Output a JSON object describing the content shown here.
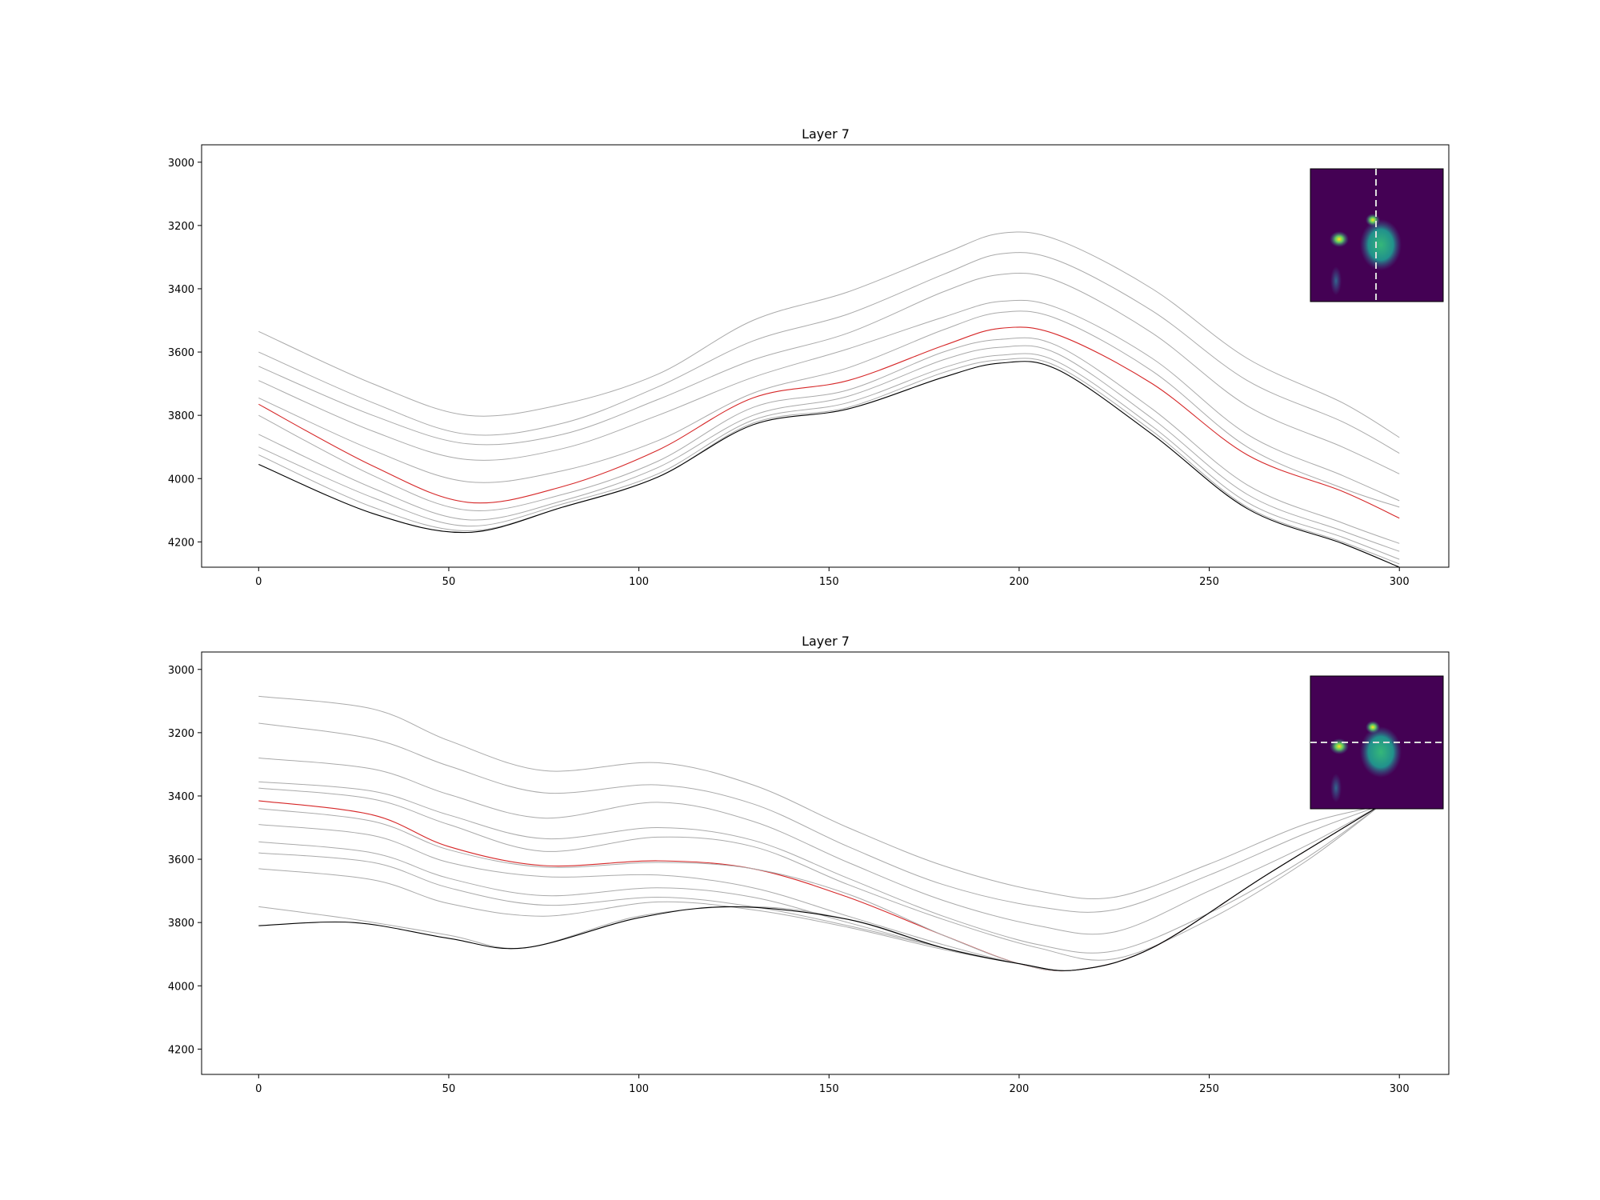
{
  "chart_data": [
    {
      "type": "line",
      "title": "Layer 7",
      "xlabel": "",
      "ylabel": "",
      "xlim": [
        -15,
        313
      ],
      "ylim": [
        4280,
        2945
      ],
      "y_inverted": true,
      "grid": false,
      "xticks": [
        "0",
        "50",
        "100",
        "150",
        "200",
        "250",
        "300"
      ],
      "yticks": [
        "3000",
        "3200",
        "3400",
        "3600",
        "3800",
        "4000",
        "4200"
      ],
      "series": [
        {
          "color": "#aaaaaa",
          "x": [
            0,
            30,
            55,
            80,
            105,
            130,
            155,
            180,
            195,
            210,
            235,
            260,
            285,
            300
          ],
          "y": [
            3535,
            3700,
            3800,
            3765,
            3670,
            3500,
            3410,
            3290,
            3225,
            3245,
            3400,
            3620,
            3760,
            3870
          ]
        },
        {
          "color": "#aaaaaa",
          "x": [
            0,
            30,
            55,
            80,
            105,
            130,
            155,
            180,
            195,
            210,
            235,
            260,
            285,
            300
          ],
          "y": [
            3600,
            3760,
            3860,
            3825,
            3710,
            3565,
            3480,
            3355,
            3290,
            3310,
            3470,
            3690,
            3820,
            3920
          ]
        },
        {
          "color": "#aaaaaa",
          "x": [
            0,
            30,
            55,
            80,
            105,
            130,
            155,
            180,
            195,
            210,
            235,
            260,
            285,
            300
          ],
          "y": [
            3645,
            3800,
            3890,
            3860,
            3750,
            3625,
            3540,
            3410,
            3355,
            3375,
            3540,
            3770,
            3900,
            3985
          ]
        },
        {
          "color": "#aaaaaa",
          "x": [
            0,
            30,
            55,
            80,
            105,
            130,
            155,
            180,
            195,
            210,
            235,
            260,
            285,
            300
          ],
          "y": [
            3690,
            3850,
            3940,
            3905,
            3800,
            3680,
            3590,
            3490,
            3440,
            3460,
            3620,
            3860,
            3990,
            4070
          ]
        },
        {
          "color": "#aaaaaa",
          "x": [
            0,
            30,
            55,
            80,
            105,
            130,
            155,
            180,
            195,
            210,
            235,
            260,
            285,
            300
          ],
          "y": [
            3745,
            3910,
            4010,
            3975,
            3880,
            3730,
            3650,
            3530,
            3475,
            3495,
            3660,
            3900,
            4030,
            4090
          ]
        },
        {
          "color": "#d62728",
          "x": [
            0,
            30,
            55,
            80,
            105,
            130,
            155,
            180,
            195,
            210,
            235,
            260,
            285,
            300
          ],
          "y": [
            3765,
            3960,
            4075,
            4025,
            3910,
            3745,
            3690,
            3580,
            3525,
            3545,
            3700,
            3925,
            4040,
            4125
          ]
        },
        {
          "color": "#aaaaaa",
          "x": [
            0,
            30,
            55,
            80,
            105,
            130,
            155,
            180,
            195,
            210,
            235,
            260,
            285,
            300
          ],
          "y": [
            3800,
            3990,
            4100,
            4050,
            3945,
            3775,
            3720,
            3600,
            3560,
            3580,
            3780,
            4020,
            4140,
            4205
          ]
        },
        {
          "color": "#aaaaaa",
          "x": [
            0,
            30,
            55,
            80,
            105,
            130,
            155,
            180,
            195,
            210,
            235,
            260,
            285,
            300
          ],
          "y": [
            3860,
            4030,
            4130,
            4070,
            3965,
            3800,
            3740,
            3625,
            3585,
            3605,
            3810,
            4050,
            4165,
            4230
          ]
        },
        {
          "color": "#aaaaaa",
          "x": [
            0,
            30,
            55,
            80,
            105,
            130,
            155,
            180,
            195,
            210,
            235,
            260,
            285,
            300
          ],
          "y": [
            3900,
            4060,
            4150,
            4080,
            3985,
            3815,
            3760,
            3650,
            3610,
            3630,
            3835,
            4075,
            4185,
            4255
          ]
        },
        {
          "color": "#aaaaaa",
          "x": [
            0,
            30,
            55,
            80,
            105,
            130,
            155,
            180,
            195,
            210,
            235,
            260,
            285,
            300
          ],
          "y": [
            3925,
            4090,
            4165,
            4090,
            3995,
            3825,
            3775,
            3665,
            3625,
            3645,
            3850,
            4090,
            4200,
            4270
          ]
        },
        {
          "color": "#000000",
          "x": [
            0,
            30,
            55,
            80,
            105,
            130,
            155,
            180,
            195,
            210,
            235,
            260,
            285,
            300
          ],
          "y": [
            3955,
            4110,
            4170,
            4090,
            3995,
            3830,
            3780,
            3680,
            3635,
            3655,
            3860,
            4095,
            4205,
            4280
          ]
        }
      ]
    },
    {
      "type": "line",
      "title": "Layer 7",
      "xlabel": "",
      "ylabel": "",
      "xlim": [
        -15,
        313
      ],
      "ylim": [
        4280,
        2945
      ],
      "y_inverted": true,
      "grid": false,
      "xticks": [
        "0",
        "50",
        "100",
        "150",
        "200",
        "250",
        "300"
      ],
      "yticks": [
        "3000",
        "3200",
        "3400",
        "3600",
        "3800",
        "4000",
        "4200"
      ],
      "series": [
        {
          "color": "#aaaaaa",
          "x": [
            0,
            30,
            50,
            75,
            105,
            130,
            155,
            180,
            205,
            225,
            250,
            275,
            295
          ],
          "y": [
            3085,
            3125,
            3225,
            3320,
            3295,
            3365,
            3500,
            3620,
            3700,
            3720,
            3615,
            3490,
            3430
          ]
        },
        {
          "color": "#aaaaaa",
          "x": [
            0,
            30,
            50,
            75,
            105,
            130,
            155,
            180,
            205,
            225,
            250,
            275,
            295
          ],
          "y": [
            3170,
            3220,
            3305,
            3390,
            3365,
            3425,
            3560,
            3680,
            3750,
            3760,
            3650,
            3520,
            3430
          ]
        },
        {
          "color": "#aaaaaa",
          "x": [
            0,
            30,
            50,
            75,
            105,
            130,
            155,
            180,
            205,
            225,
            250,
            275,
            295
          ],
          "y": [
            3280,
            3315,
            3395,
            3470,
            3420,
            3480,
            3610,
            3730,
            3810,
            3830,
            3700,
            3560,
            3430
          ]
        },
        {
          "color": "#aaaaaa",
          "x": [
            0,
            30,
            50,
            75,
            105,
            130,
            155,
            180,
            205,
            225,
            250,
            275,
            295
          ],
          "y": [
            3355,
            3385,
            3460,
            3535,
            3500,
            3540,
            3660,
            3780,
            3870,
            3890,
            3770,
            3600,
            3430
          ]
        },
        {
          "color": "#aaaaaa",
          "x": [
            0,
            30,
            50,
            75,
            105,
            130,
            155,
            180,
            205,
            225,
            250,
            275,
            295
          ],
          "y": [
            3375,
            3410,
            3490,
            3575,
            3530,
            3560,
            3680,
            3790,
            3880,
            3915,
            3790,
            3610,
            3430
          ]
        },
        {
          "color": "#d62728",
          "x": [
            0,
            30,
            50,
            75,
            105,
            130,
            155,
            180,
            200,
            215,
            235,
            265,
            295
          ],
          "y": [
            3415,
            3460,
            3560,
            3620,
            3605,
            3630,
            3720,
            3840,
            3930,
            3950,
            3880,
            3650,
            3430
          ]
        },
        {
          "color": "#aaaaaa",
          "x": [
            0,
            30,
            50,
            75,
            105,
            130,
            155,
            180,
            200,
            215,
            235,
            265,
            295
          ],
          "y": [
            3440,
            3480,
            3570,
            3625,
            3610,
            3630,
            3710,
            3840,
            3930,
            3950,
            3880,
            3650,
            3430
          ]
        },
        {
          "color": "#aaaaaa",
          "x": [
            0,
            30,
            50,
            75,
            105,
            130,
            155,
            180,
            200,
            215,
            235,
            265,
            295
          ],
          "y": [
            3490,
            3525,
            3610,
            3655,
            3650,
            3690,
            3780,
            3870,
            3930,
            3950,
            3880,
            3650,
            3430
          ]
        },
        {
          "color": "#aaaaaa",
          "x": [
            0,
            30,
            50,
            75,
            105,
            130,
            155,
            180,
            200,
            215,
            235,
            265,
            295
          ],
          "y": [
            3545,
            3580,
            3660,
            3715,
            3690,
            3720,
            3800,
            3880,
            3930,
            3950,
            3880,
            3650,
            3430
          ]
        },
        {
          "color": "#aaaaaa",
          "x": [
            0,
            30,
            50,
            75,
            105,
            130,
            155,
            180,
            200,
            215,
            235,
            265,
            295
          ],
          "y": [
            3580,
            3610,
            3690,
            3745,
            3720,
            3750,
            3810,
            3880,
            3930,
            3950,
            3880,
            3650,
            3430
          ]
        },
        {
          "color": "#aaaaaa",
          "x": [
            0,
            30,
            50,
            75,
            105,
            130,
            155,
            180,
            200,
            215,
            235,
            265,
            295
          ],
          "y": [
            3630,
            3665,
            3740,
            3780,
            3735,
            3760,
            3815,
            3885,
            3930,
            3950,
            3880,
            3650,
            3430
          ]
        },
        {
          "color": "#aaaaaa",
          "x": [
            0,
            25,
            50,
            70,
            100,
            130,
            155,
            180,
            200,
            215,
            235,
            265,
            295
          ],
          "y": [
            3750,
            3790,
            3840,
            3880,
            3780,
            3750,
            3790,
            3880,
            3930,
            3950,
            3880,
            3650,
            3430
          ]
        },
        {
          "color": "#000000",
          "x": [
            0,
            25,
            50,
            70,
            100,
            125,
            155,
            180,
            200,
            215,
            235,
            265,
            295
          ],
          "y": [
            3810,
            3800,
            3850,
            3880,
            3785,
            3750,
            3790,
            3880,
            3930,
            3950,
            3880,
            3650,
            3430
          ]
        }
      ]
    }
  ],
  "insets": [
    {
      "background": "#440154",
      "crosshair": "vertical"
    },
    {
      "background": "#440154",
      "crosshair": "horizontal"
    }
  ]
}
